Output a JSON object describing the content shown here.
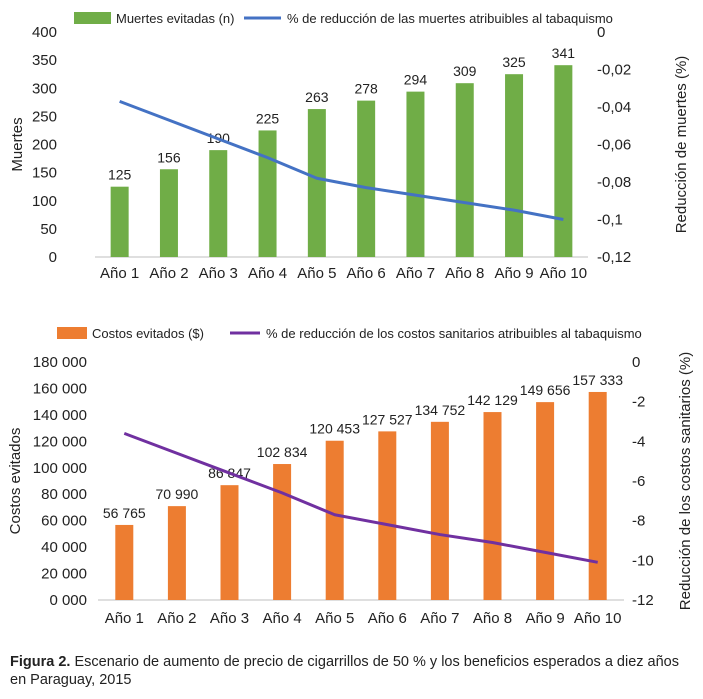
{
  "chart_data": [
    {
      "type": "bar",
      "categories": [
        "Año 1",
        "Año 2",
        "Año 3",
        "Año 4",
        "Año 5",
        "Año 6",
        "Año 7",
        "Año 8",
        "Año 9",
        "Año 10"
      ],
      "series": [
        {
          "name": "Muertes evitadas (n)",
          "type": "bar",
          "axis": "left",
          "values": [
            125,
            156,
            190,
            225,
            263,
            278,
            294,
            309,
            325,
            341
          ],
          "labels": [
            "125",
            "156",
            "190",
            "225",
            "263",
            "278",
            "294",
            "309",
            "325",
            "341"
          ]
        },
        {
          "name": "% de reducción de las muertes atribuibles al tabaquismo",
          "type": "line",
          "axis": "right",
          "values": [
            -0.037,
            -0.047,
            -0.057,
            -0.067,
            -0.078,
            -0.083,
            -0.087,
            -0.091,
            -0.095,
            -0.1
          ]
        }
      ],
      "ylabel": "Muertes",
      "y2label": "Reducción de muertes (%)",
      "ylim": [
        0,
        400
      ],
      "yticks": [
        "0",
        "50",
        "100",
        "150",
        "200",
        "250",
        "300",
        "350",
        "400"
      ],
      "y2lim": [
        -0.12,
        0
      ],
      "y2ticks": [
        "0",
        "-0,02",
        "-0,04",
        "-0,06",
        "-0,08",
        "-0,1",
        "-0,12"
      ],
      "colors": {
        "bar": "#70ad47",
        "line": "#4472c4"
      },
      "legend_position": "top",
      "grid": false
    },
    {
      "type": "bar",
      "categories": [
        "Año 1",
        "Año 2",
        "Año 3",
        "Año 4",
        "Año 5",
        "Año 6",
        "Año 7",
        "Año 8",
        "Año 9",
        "Año 10"
      ],
      "series": [
        {
          "name": "Costos evitados ($)",
          "type": "bar",
          "axis": "left",
          "values": [
            56765,
            70990,
            86847,
            102834,
            120453,
            127527,
            134752,
            142129,
            149656,
            157333
          ],
          "labels": [
            "56 765",
            "70 990",
            "86 847",
            "102 834",
            "120 453",
            "127 527",
            "134 752",
            "142 129",
            "149 656",
            "157 333"
          ]
        },
        {
          "name": "% de reducción de los costos sanitarios atribuibles al tabaquismo",
          "type": "line",
          "axis": "right",
          "values": [
            -3.6,
            -4.6,
            -5.6,
            -6.6,
            -7.7,
            -8.2,
            -8.7,
            -9.1,
            -9.6,
            -10.1
          ]
        }
      ],
      "ylabel": "Costos evitados",
      "y2label": "Reducción de los costos sanitarios (%)",
      "ylim": [
        0,
        180000
      ],
      "yticks": [
        "0 000",
        "20 000",
        "40 000",
        "60 000",
        "80 000",
        "100 000",
        "120 000",
        "140 000",
        "160 000",
        "180 000"
      ],
      "y2lim": [
        -12,
        0
      ],
      "y2ticks": [
        "0",
        "-2",
        "-4",
        "-6",
        "-8",
        "-10",
        "-12"
      ],
      "colors": {
        "bar": "#ed7d31",
        "line": "#7030a0"
      },
      "legend_position": "top",
      "grid": false
    }
  ],
  "caption": {
    "label": "Figura 2.",
    "text": "Escenario de aumento de precio de cigarrillos de 50 % y los beneficios esperados a diez años en Paraguay, 2015"
  }
}
